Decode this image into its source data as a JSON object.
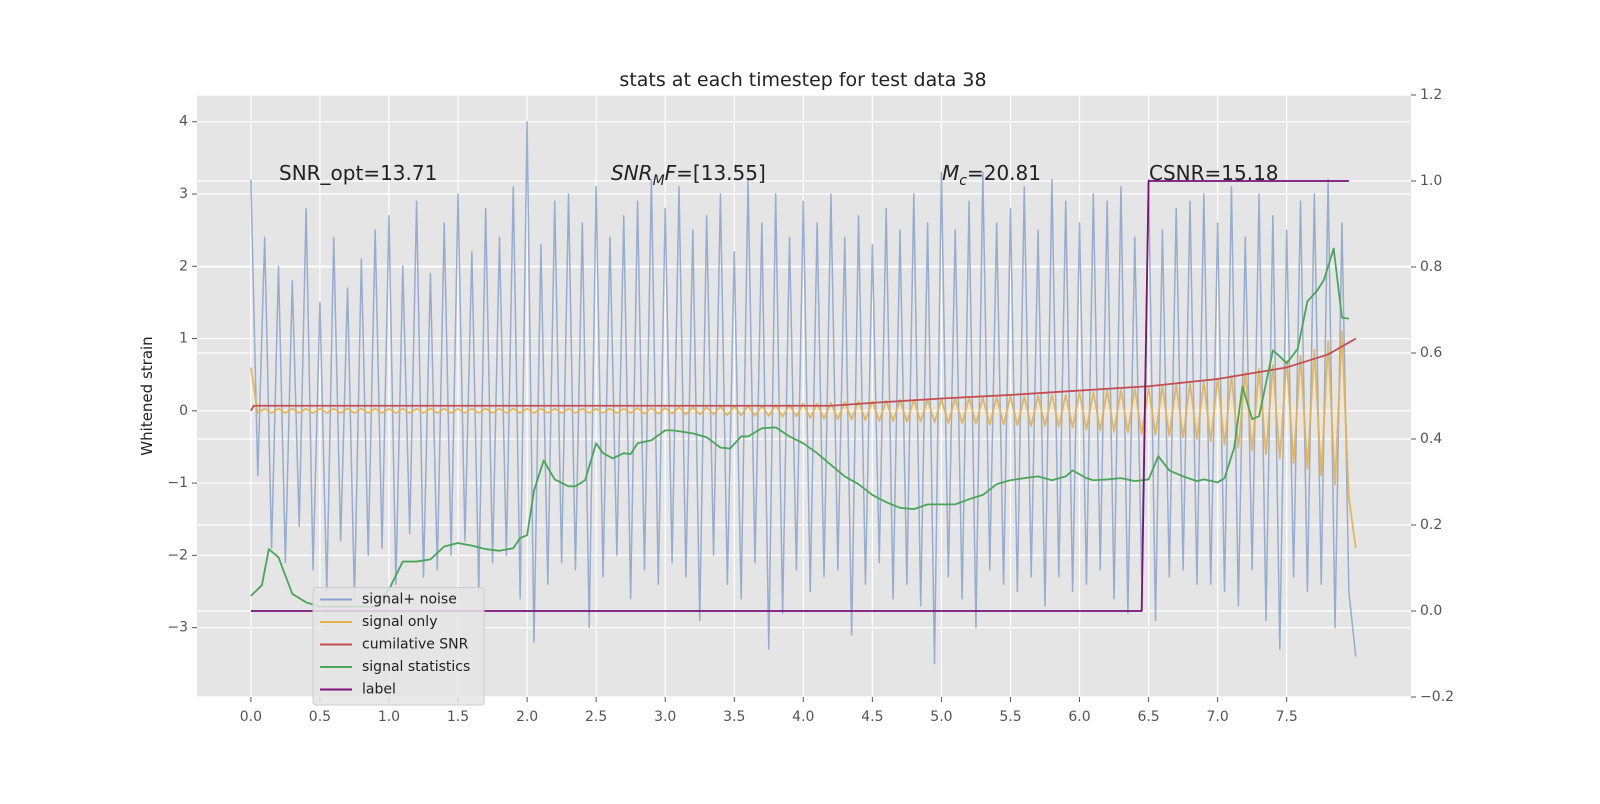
{
  "chart_data": {
    "type": "line",
    "title": "stats at each timestep for test data 38",
    "ylabel": "Whitened strain",
    "annotations": {
      "snr_opt": "SNR_opt=13.71",
      "snr_mf": [
        "SNR",
        "M",
        "F",
        "=[13.55]"
      ],
      "mc": [
        "M",
        "c",
        "=20.81"
      ],
      "csnr": "CSNR=15.18"
    },
    "xlim": [
      -0.39,
      8.4
    ],
    "ylim": [
      -3.96,
      4.37
    ],
    "y2lim": [
      -0.2,
      1.2
    ],
    "xticks": [
      {
        "value": 0,
        "label": "0.0"
      },
      0.5,
      {
        "value": 1,
        "label": "1.0"
      },
      1.5,
      {
        "value": 2,
        "label": "2.0"
      },
      2.5,
      {
        "value": 3,
        "label": "3.0"
      },
      3.5,
      {
        "value": 4,
        "label": "4.0"
      },
      4.5,
      {
        "value": 5,
        "label": "5.0"
      },
      5.5,
      {
        "value": 6,
        "label": "6.0"
      },
      6.5,
      {
        "value": 7,
        "label": "7.0"
      },
      7.5
    ],
    "yticks": [
      {
        "value": -3,
        "label": "−3"
      },
      {
        "value": -2,
        "label": "−2"
      },
      {
        "value": -1,
        "label": "−1"
      },
      0,
      1,
      2,
      3,
      4
    ],
    "y2ticks": [
      {
        "value": -0.2,
        "label": "−0.2"
      },
      {
        "value": 0,
        "label": "0.0"
      },
      0.2,
      0.4,
      0.6,
      0.8,
      {
        "value": 1,
        "label": "1.0"
      },
      1.2
    ],
    "grid": true,
    "legend": "lower left",
    "x": [
      0,
      0.05,
      0.1,
      0.15,
      0.2,
      0.25,
      0.3,
      0.35,
      0.4,
      0.45,
      0.5,
      0.55,
      0.6,
      0.65,
      0.7,
      0.75,
      0.8,
      0.85,
      0.9,
      0.95,
      1,
      1.05,
      1.1,
      1.15,
      1.2,
      1.25,
      1.3,
      1.35,
      1.4,
      1.45,
      1.5,
      1.55,
      1.6,
      1.65,
      1.7,
      1.75,
      1.8,
      1.85,
      1.9,
      1.95,
      2,
      2.05,
      2.1,
      2.15,
      2.2,
      2.25,
      2.3,
      2.35,
      2.4,
      2.45,
      2.5,
      2.55,
      2.6,
      2.65,
      2.7,
      2.75,
      2.8,
      2.85,
      2.9,
      2.95,
      3,
      3.05,
      3.1,
      3.15,
      3.2,
      3.25,
      3.3,
      3.35,
      3.4,
      3.45,
      3.5,
      3.55,
      3.6,
      3.65,
      3.7,
      3.75,
      3.8,
      3.85,
      3.9,
      3.95,
      4,
      4.05,
      4.1,
      4.15,
      4.2,
      4.25,
      4.3,
      4.35,
      4.4,
      4.45,
      4.5,
      4.55,
      4.6,
      4.65,
      4.7,
      4.75,
      4.8,
      4.85,
      4.9,
      4.95,
      5,
      5.05,
      5.1,
      5.15,
      5.2,
      5.25,
      5.3,
      5.35,
      5.4,
      5.45,
      5.5,
      5.55,
      5.6,
      5.65,
      5.7,
      5.75,
      5.8,
      5.85,
      5.9,
      5.95,
      6,
      6.05,
      6.1,
      6.15,
      6.2,
      6.25,
      6.3,
      6.35,
      6.4,
      6.45,
      6.5,
      6.55,
      6.6,
      6.65,
      6.7,
      6.75,
      6.8,
      6.85,
      6.9,
      6.95,
      7,
      7.05,
      7.1,
      7.15,
      7.2,
      7.25,
      7.3,
      7.35,
      7.4,
      7.45,
      7.5,
      7.55,
      7.6,
      7.65,
      7.7,
      7.75,
      7.8,
      7.85,
      7.9,
      7.95,
      8
    ],
    "series": [
      {
        "name": "signal+ noise",
        "color": "#8aa2cd",
        "values": [
          3.2,
          -0.9,
          2.4,
          -1.9,
          2.0,
          -2.1,
          1.8,
          -1.6,
          2.8,
          -2.2,
          1.5,
          -2.5,
          2.4,
          -1.8,
          1.7,
          -2.6,
          2.1,
          -2.0,
          2.5,
          -1.9,
          2.7,
          -2.4,
          2.0,
          -1.7,
          2.9,
          -2.3,
          1.9,
          -2.2,
          2.6,
          -2.0,
          3.0,
          -1.8,
          2.2,
          -2.5,
          2.8,
          -2.1,
          2.4,
          -2.0,
          3.1,
          -2.6,
          4.0,
          -3.2,
          2.3,
          -2.4,
          2.9,
          -2.1,
          3.0,
          -2.2,
          2.6,
          -3.0,
          3.1,
          -2.3,
          2.4,
          -2.0,
          2.7,
          -2.6,
          2.9,
          -2.2,
          3.2,
          -2.4,
          2.8,
          -2.1,
          3.1,
          -2.3,
          2.5,
          -2.9,
          2.7,
          -2.0,
          3.0,
          -2.4,
          2.2,
          -2.6,
          3.2,
          -2.1,
          2.6,
          -3.3,
          3.0,
          -2.8,
          2.4,
          -2.2,
          2.9,
          -2.5,
          2.6,
          -2.3,
          3.0,
          -2.2,
          2.4,
          -3.1,
          2.7,
          -2.4,
          2.3,
          -2.1,
          2.8,
          -2.6,
          2.5,
          -2.4,
          3.0,
          -2.7,
          2.6,
          -3.5,
          3.3,
          -2.3,
          2.5,
          -2.6,
          2.9,
          -3.0,
          3.3,
          -2.2,
          2.6,
          -2.4,
          2.8,
          -2.5,
          3.1,
          -2.3,
          2.5,
          -2.7,
          3.2,
          -2.3,
          2.9,
          -2.5,
          2.6,
          -2.4,
          3.0,
          -2.2,
          2.9,
          -2.6,
          3.1,
          -2.8,
          2.4,
          -2.3,
          3.2,
          -2.9,
          2.5,
          -2.3,
          2.8,
          -2.2,
          2.9,
          -2.4,
          3.0,
          -2.4,
          2.6,
          -2.5,
          3.1,
          -2.7,
          2.4,
          -2.2,
          3.0,
          -2.9,
          2.7,
          -3.3,
          2.5,
          -2.3,
          2.9,
          -2.5,
          3.0,
          -2.4,
          3.2,
          -3.0,
          2.6,
          -2.5,
          -3.4
        ]
      },
      {
        "name": "signal only",
        "color": "#e8b04a",
        "values": [
          0.6,
          -0.03,
          0.03,
          -0.03,
          0.03,
          -0.03,
          0.03,
          -0.03,
          0.03,
          -0.03,
          0.03,
          -0.03,
          0.03,
          -0.03,
          0.03,
          -0.03,
          0.03,
          -0.03,
          0.03,
          -0.03,
          0.03,
          -0.03,
          0.03,
          -0.03,
          0.03,
          -0.03,
          0.03,
          -0.03,
          0.03,
          -0.03,
          0.03,
          -0.03,
          0.03,
          -0.03,
          0.03,
          -0.03,
          0.03,
          -0.03,
          0.03,
          -0.03,
          0.03,
          -0.03,
          0.03,
          -0.03,
          0.03,
          -0.03,
          0.03,
          -0.03,
          0.03,
          -0.03,
          0.03,
          -0.03,
          0.03,
          -0.03,
          0.03,
          -0.03,
          0.04,
          -0.04,
          0.04,
          -0.04,
          0.04,
          -0.04,
          0.05,
          -0.05,
          0.05,
          -0.05,
          0.05,
          -0.05,
          0.06,
          -0.06,
          0.06,
          -0.06,
          0.07,
          -0.07,
          0.07,
          -0.07,
          0.08,
          -0.08,
          0.08,
          -0.08,
          0.1,
          -0.1,
          0.1,
          -0.11,
          0.11,
          -0.12,
          0.12,
          -0.12,
          0.13,
          -0.13,
          0.13,
          -0.14,
          0.14,
          -0.14,
          0.15,
          -0.15,
          0.15,
          -0.15,
          0.16,
          -0.16,
          0.16,
          -0.17,
          0.17,
          -0.17,
          0.18,
          -0.18,
          0.18,
          -0.19,
          0.19,
          -0.19,
          0.2,
          -0.2,
          0.2,
          -0.21,
          0.21,
          -0.21,
          0.22,
          -0.22,
          0.22,
          -0.23,
          0.25,
          -0.26,
          0.26,
          -0.27,
          0.28,
          -0.29,
          0.29,
          -0.3,
          0.31,
          -0.32,
          0.32,
          -0.33,
          0.34,
          -0.35,
          0.36,
          -0.37,
          0.38,
          -0.39,
          0.4,
          -0.42,
          0.45,
          -0.47,
          0.49,
          -0.51,
          0.53,
          -0.55,
          0.58,
          -0.6,
          0.63,
          -0.66,
          0.69,
          -0.72,
          0.76,
          -0.8,
          0.85,
          -0.9,
          0.96,
          -1.02,
          1.1,
          -1.2,
          -1.9
        ]
      },
      {
        "name": "cumilative SNR",
        "color": "#c44e52",
        "x": [
          0,
          0.02,
          4.2,
          4.5,
          5,
          5.5,
          6,
          6.5,
          7,
          7.5,
          7.8,
          8
        ],
        "values": [
          0,
          0.07,
          0.07,
          0.11,
          0.17,
          0.22,
          0.28,
          0.34,
          0.44,
          0.6,
          0.78,
          1.0
        ]
      },
      {
        "name": "signal statistics",
        "color": "#4aa55a",
        "axis": "y2",
        "x": [
          0,
          0.08,
          0.13,
          0.2,
          0.3,
          0.4,
          0.5,
          0.9,
          1.0,
          1.1,
          1.2,
          1.3,
          1.4,
          1.5,
          1.6,
          1.7,
          1.8,
          1.9,
          1.95,
          2.0,
          2.05,
          2.12,
          2.2,
          2.3,
          2.35,
          2.42,
          2.5,
          2.55,
          2.62,
          2.7,
          2.75,
          2.8,
          2.9,
          3.0,
          3.05,
          3.1,
          3.2,
          3.3,
          3.4,
          3.47,
          3.55,
          3.6,
          3.7,
          3.8,
          3.9,
          4.0,
          4.1,
          4.2,
          4.3,
          4.4,
          4.5,
          4.6,
          4.7,
          4.8,
          4.9,
          5.0,
          5.1,
          5.2,
          5.3,
          5.4,
          5.5,
          5.6,
          5.7,
          5.8,
          5.9,
          5.95,
          6.05,
          6.1,
          6.2,
          6.3,
          6.4,
          6.5,
          6.57,
          6.65,
          6.75,
          6.85,
          6.9,
          7.0,
          7.05,
          7.12,
          7.18,
          7.25,
          7.3,
          7.4,
          7.45,
          7.5,
          7.58,
          7.65,
          7.72,
          7.77,
          7.84,
          7.9,
          7.95
        ],
        "values": [
          0.035,
          0.06,
          0.144,
          0.125,
          0.04,
          0.02,
          0.01,
          0.01,
          0.05,
          0.115,
          0.115,
          0.12,
          0.15,
          0.158,
          0.152,
          0.144,
          0.14,
          0.146,
          0.17,
          0.176,
          0.28,
          0.35,
          0.306,
          0.29,
          0.29,
          0.304,
          0.39,
          0.367,
          0.355,
          0.367,
          0.365,
          0.39,
          0.397,
          0.42,
          0.42,
          0.418,
          0.413,
          0.404,
          0.38,
          0.378,
          0.406,
          0.406,
          0.425,
          0.427,
          0.406,
          0.39,
          0.367,
          0.34,
          0.313,
          0.295,
          0.27,
          0.253,
          0.24,
          0.237,
          0.248,
          0.248,
          0.248,
          0.26,
          0.27,
          0.295,
          0.304,
          0.309,
          0.313,
          0.304,
          0.313,
          0.327,
          0.309,
          0.304,
          0.306,
          0.309,
          0.302,
          0.306,
          0.36,
          0.327,
          0.313,
          0.302,
          0.306,
          0.299,
          0.309,
          0.38,
          0.522,
          0.446,
          0.453,
          0.606,
          0.592,
          0.576,
          0.61,
          0.72,
          0.745,
          0.77,
          0.843,
          0.682,
          0.68
        ]
      },
      {
        "name": "label",
        "color": "#7a127a",
        "axis": "y2",
        "x": [
          0,
          6.45,
          6.5,
          7.95
        ],
        "values": [
          0,
          0,
          1,
          1
        ]
      }
    ]
  }
}
